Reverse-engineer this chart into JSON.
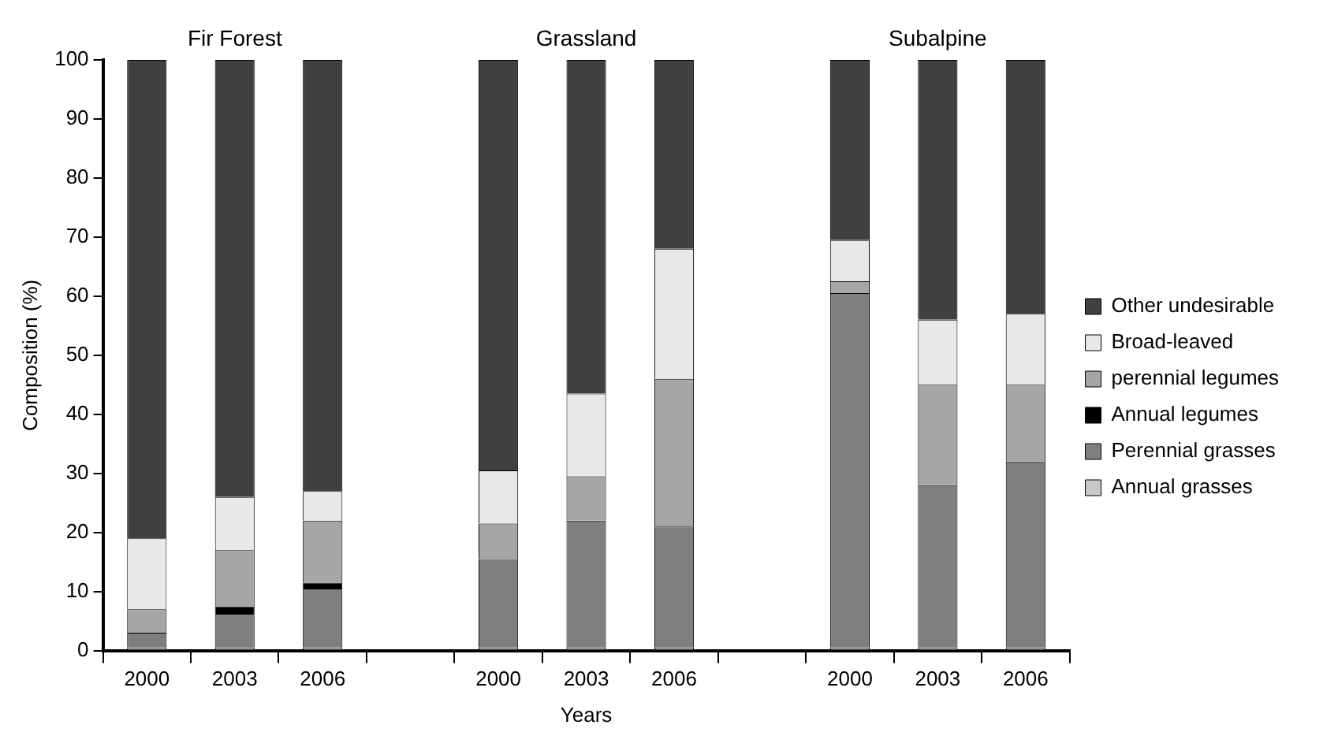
{
  "chart_data": {
    "type": "bar",
    "stacked": true,
    "xlabel": "Years",
    "ylabel": "Composition (%)",
    "annotations": [
      "Fir Forest",
      "Grassland",
      "Subalpine"
    ],
    "categories": [
      "2000",
      "2003",
      "2006",
      null,
      "2000",
      "2003",
      "2006",
      null,
      "2000",
      "2003",
      "2006"
    ],
    "series": [
      {
        "name": "Annual grasses",
        "color": "#c8c8c8",
        "values": [
          0.5,
          0.5,
          0.5,
          null,
          0.5,
          0.5,
          0.5,
          null,
          0.5,
          0.5,
          0.5
        ]
      },
      {
        "name": "Perennial grasses",
        "color": "#7f7f7f",
        "values": [
          2.5,
          5.5,
          10,
          null,
          15,
          21.5,
          20.5,
          null,
          60,
          27.5,
          31.5
        ]
      },
      {
        "name": "Annual legumes",
        "color": "#000000",
        "values": [
          0,
          1.5,
          1,
          null,
          0,
          0,
          0,
          null,
          0,
          0,
          0
        ]
      },
      {
        "name": "perennial legumes",
        "color": "#a6a6a6",
        "values": [
          4,
          9.5,
          10.5,
          null,
          6,
          7.5,
          25,
          null,
          2,
          17,
          13
        ]
      },
      {
        "name": "Broad-leaved",
        "color": "#e8e8e8",
        "values": [
          12,
          9,
          5,
          null,
          9,
          14,
          22,
          null,
          7,
          11,
          12
        ]
      },
      {
        "name": "Other undesirable",
        "color": "#404040",
        "values": [
          81,
          74,
          73,
          null,
          69.5,
          56.5,
          32,
          null,
          30.5,
          44,
          43
        ]
      }
    ],
    "ylim": [
      0,
      100
    ],
    "yticks": [
      0,
      10,
      20,
      30,
      40,
      50,
      60,
      70,
      80,
      90,
      100
    ],
    "grid": false,
    "legend": "right"
  }
}
